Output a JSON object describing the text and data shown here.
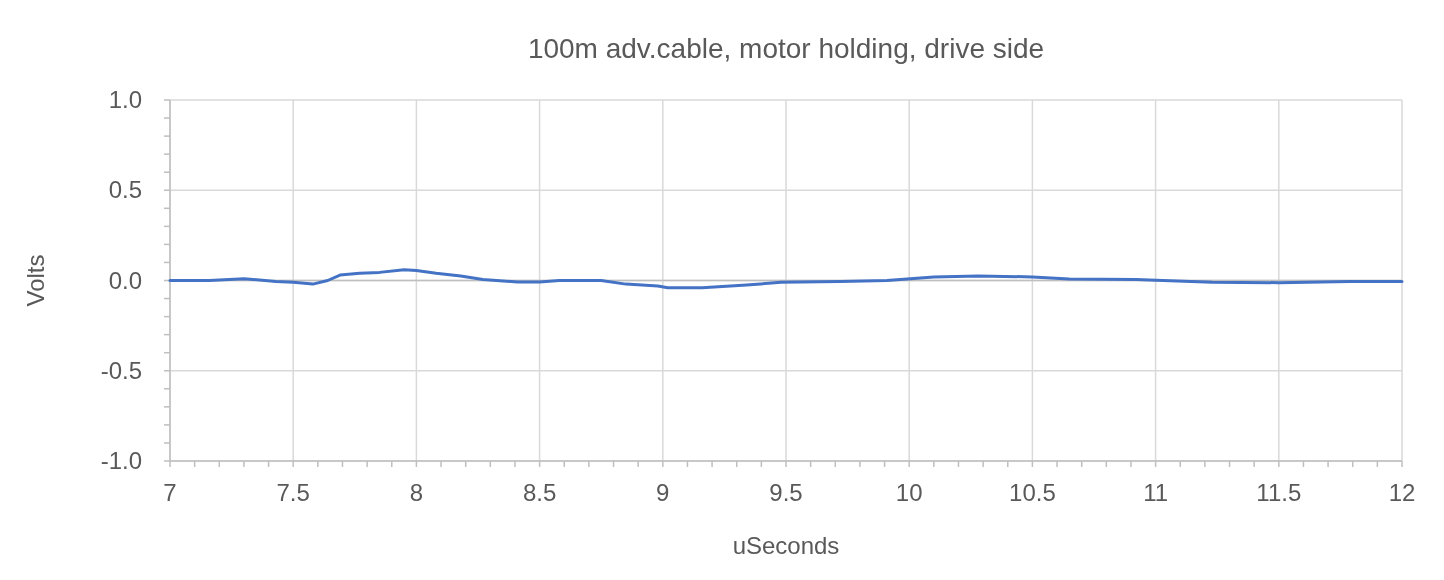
{
  "chart_data": {
    "type": "line",
    "title": "100m adv.cable, motor holding, drive side",
    "xlabel": "uSeconds",
    "ylabel": "Volts",
    "xlim": [
      7,
      12
    ],
    "xticks": [
      7,
      7.5,
      8,
      8.5,
      9,
      9.5,
      10,
      10.5,
      11,
      11.5,
      12
    ],
    "ylim": [
      -1,
      1
    ],
    "yticks": [
      {
        "value": -1,
        "label": "-1.0"
      },
      {
        "value": -0.5,
        "label": "-0.5"
      },
      {
        "value": 0,
        "label": "0.0"
      },
      {
        "value": 0.5,
        "label": "0.5"
      },
      {
        "value": 1,
        "label": "1.0"
      }
    ],
    "grid": true,
    "series": [
      {
        "color": "#4472c4",
        "x": [
          7.0,
          7.16,
          7.3,
          7.43,
          7.5,
          7.58,
          7.64,
          7.69,
          7.77,
          7.85,
          7.95,
          8.0,
          8.08,
          8.18,
          8.27,
          8.41,
          8.5,
          8.58,
          8.75,
          8.85,
          8.98,
          9.02,
          9.16,
          9.34,
          9.48,
          9.72,
          9.91,
          10.1,
          10.28,
          10.5,
          10.65,
          10.92,
          11.03,
          11.23,
          11.5,
          11.79,
          12.0
        ],
        "values": [
          0,
          0,
          0.01,
          -0.005,
          -0.01,
          -0.02,
          0,
          0.03,
          0.04,
          0.045,
          0.06,
          0.055,
          0.04,
          0.025,
          0.005,
          -0.008,
          -0.008,
          0,
          0,
          -0.02,
          -0.03,
          -0.04,
          -0.04,
          -0.025,
          -0.01,
          -0.005,
          0,
          0.02,
          0.025,
          0.02,
          0.008,
          0.005,
          0,
          -0.01,
          -0.012,
          -0.005,
          -0.005
        ]
      }
    ]
  }
}
